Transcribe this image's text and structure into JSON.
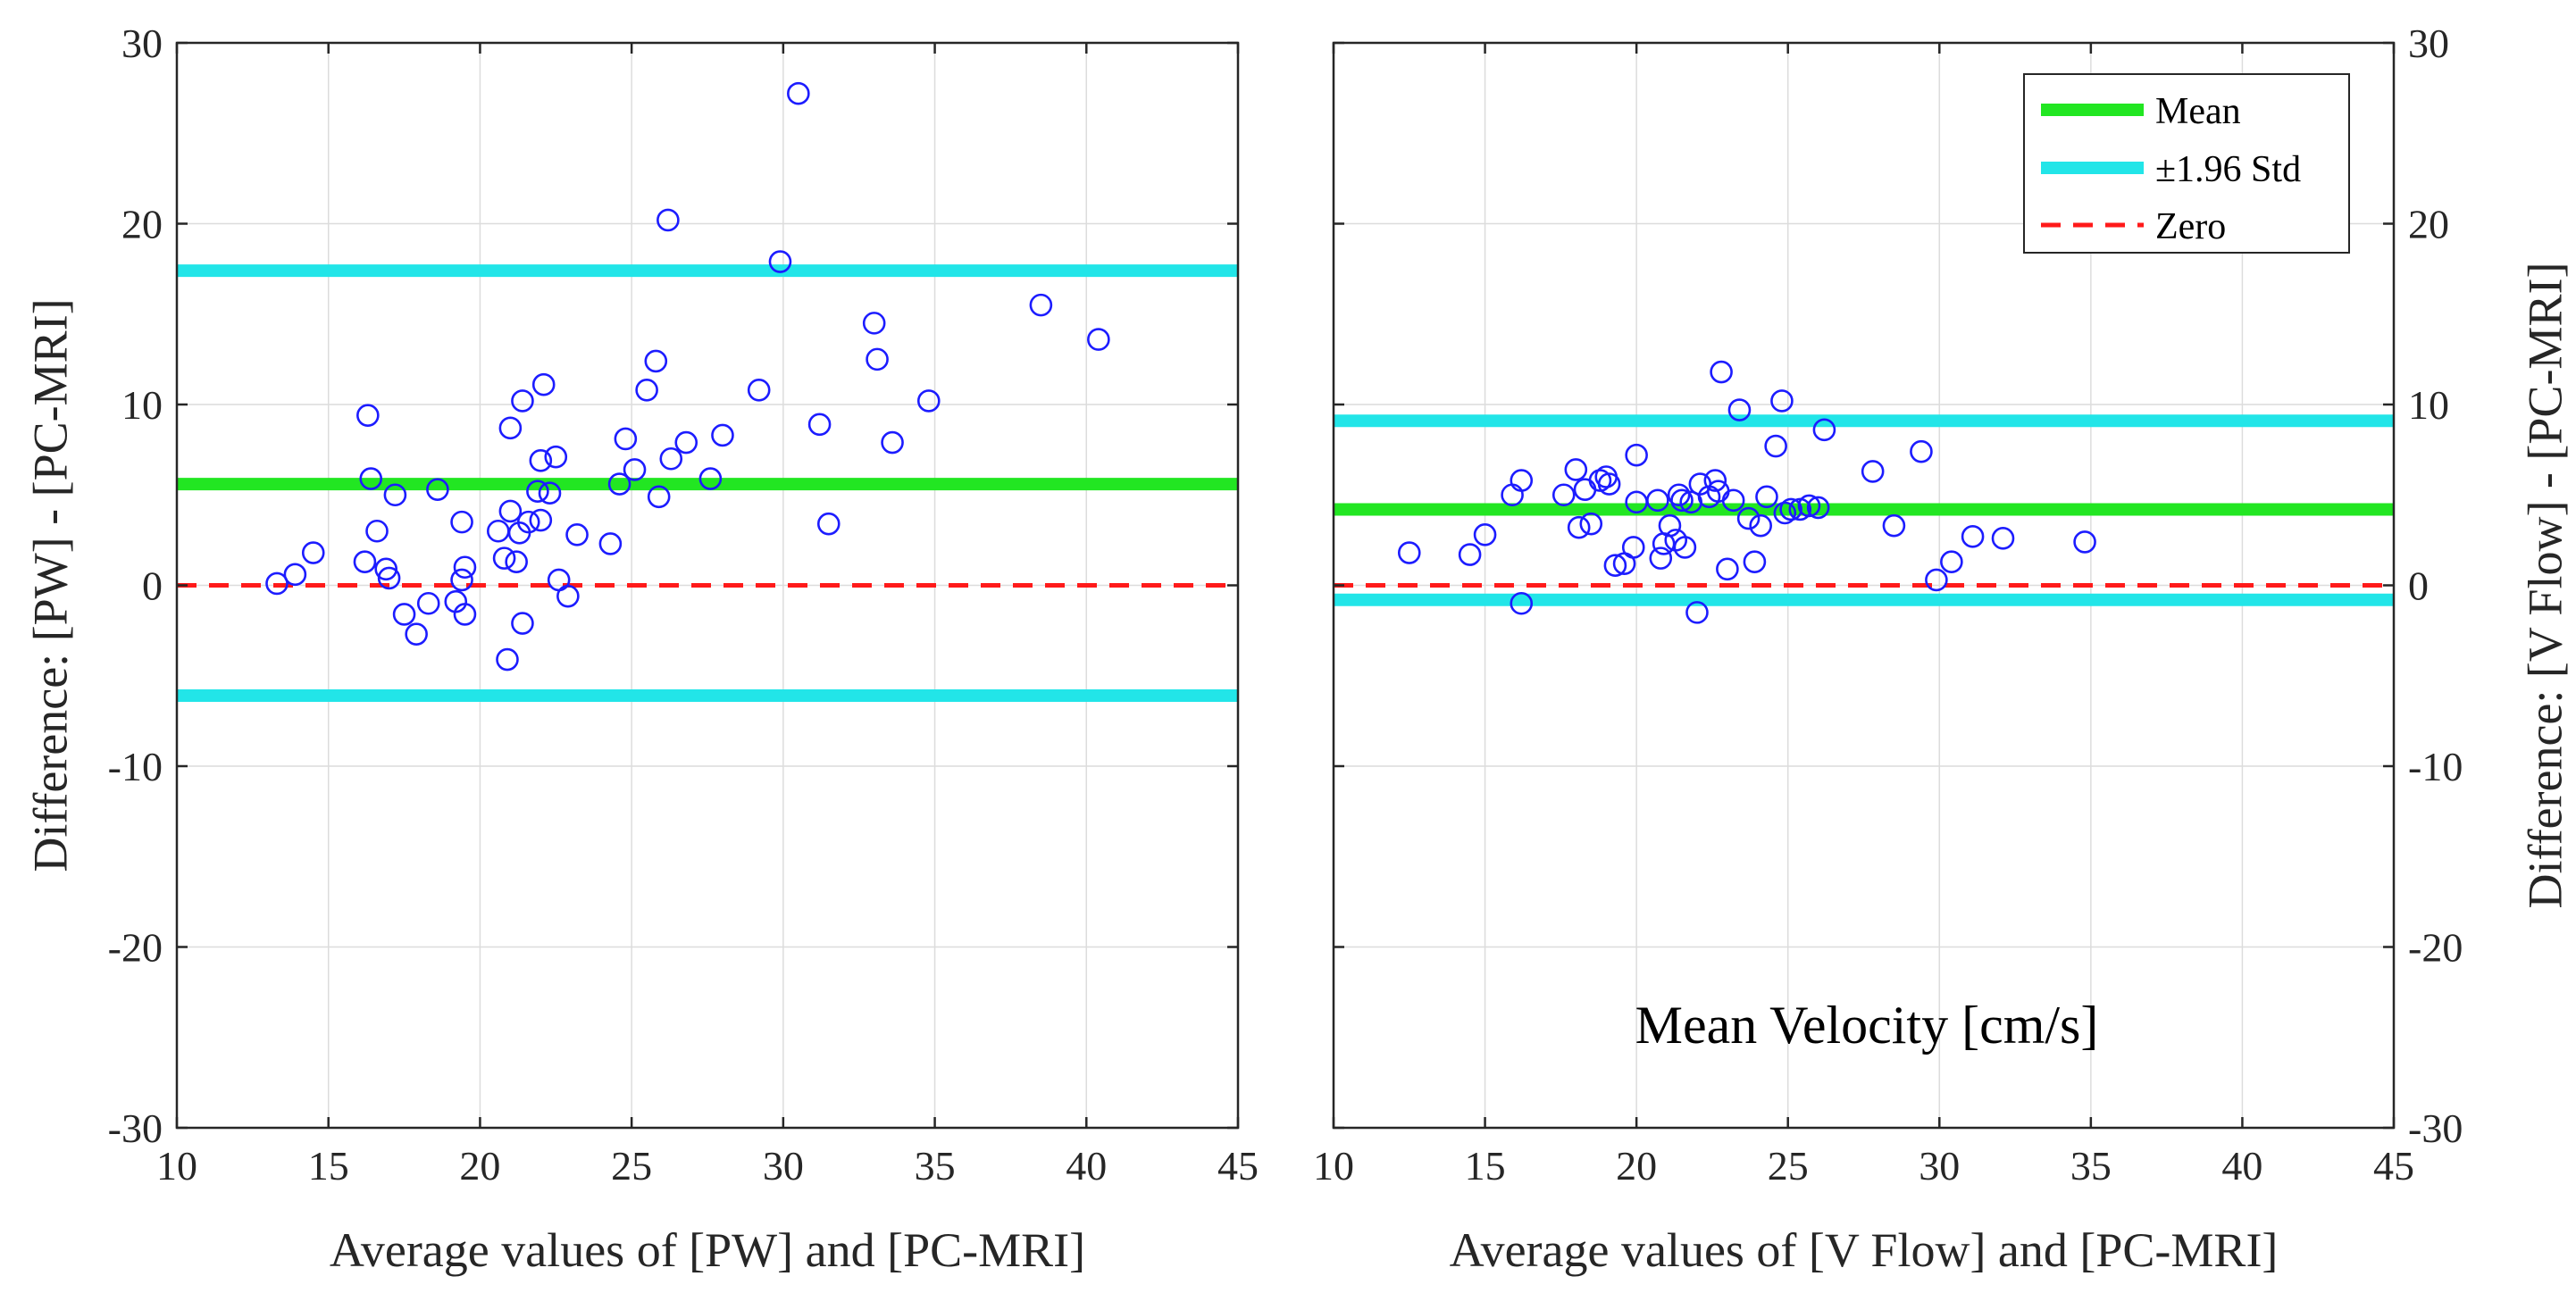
{
  "chart_data": [
    {
      "type": "scatter",
      "id": "left",
      "xlabel": "Average values of [PW] and [PC-MRI]",
      "ylabel": "Difference: [PW] - [PC-MRI]",
      "xlim": [
        10,
        45
      ],
      "ylim": [
        -30,
        30
      ],
      "xticks": [
        "10",
        "15",
        "20",
        "25",
        "30",
        "35",
        "40",
        "45"
      ],
      "yticks": [
        "-30",
        "-20",
        "-10",
        "0",
        "10",
        "20",
        "30"
      ],
      "grid": true,
      "ylabel_side": "left",
      "mean": 5.6,
      "upper": 17.4,
      "lower": -6.1,
      "zero": 0,
      "points": [
        [
          13.3,
          0.1
        ],
        [
          13.9,
          0.6
        ],
        [
          14.5,
          1.8
        ],
        [
          16.2,
          1.3
        ],
        [
          16.3,
          9.4
        ],
        [
          16.4,
          5.9
        ],
        [
          16.6,
          3.0
        ],
        [
          16.9,
          0.9
        ],
        [
          17.0,
          0.4
        ],
        [
          17.2,
          5.0
        ],
        [
          17.5,
          -1.6
        ],
        [
          17.9,
          -2.7
        ],
        [
          18.3,
          -1.0
        ],
        [
          18.6,
          5.3
        ],
        [
          19.2,
          -0.9
        ],
        [
          19.4,
          0.3
        ],
        [
          19.4,
          3.5
        ],
        [
          19.5,
          1.0
        ],
        [
          19.5,
          -1.6
        ],
        [
          20.6,
          3.0
        ],
        [
          20.8,
          1.5
        ],
        [
          20.9,
          -4.1
        ],
        [
          21.0,
          4.1
        ],
        [
          21.0,
          8.7
        ],
        [
          21.2,
          1.3
        ],
        [
          21.3,
          2.9
        ],
        [
          21.4,
          -2.1
        ],
        [
          21.4,
          10.2
        ],
        [
          21.6,
          3.5
        ],
        [
          21.9,
          5.2
        ],
        [
          22.0,
          3.6
        ],
        [
          22.0,
          6.9
        ],
        [
          22.1,
          11.1
        ],
        [
          22.3,
          5.1
        ],
        [
          22.5,
          7.1
        ],
        [
          22.6,
          0.3
        ],
        [
          22.9,
          -0.6
        ],
        [
          23.2,
          2.8
        ],
        [
          24.3,
          2.3
        ],
        [
          24.6,
          5.6
        ],
        [
          24.8,
          8.1
        ],
        [
          25.1,
          6.4
        ],
        [
          25.5,
          10.8
        ],
        [
          25.8,
          12.4
        ],
        [
          25.9,
          4.9
        ],
        [
          26.2,
          20.2
        ],
        [
          26.3,
          7.0
        ],
        [
          26.8,
          7.9
        ],
        [
          27.6,
          5.9
        ],
        [
          28.0,
          8.3
        ],
        [
          29.2,
          10.8
        ],
        [
          29.9,
          17.9
        ],
        [
          30.5,
          27.2
        ],
        [
          31.2,
          8.9
        ],
        [
          31.5,
          3.4
        ],
        [
          33.0,
          14.5
        ],
        [
          33.1,
          12.5
        ],
        [
          33.6,
          7.9
        ],
        [
          34.8,
          10.2
        ],
        [
          38.5,
          15.5
        ],
        [
          40.4,
          13.6
        ]
      ]
    },
    {
      "type": "scatter",
      "id": "right",
      "xlabel": "Average values of [V Flow] and [PC-MRI]",
      "ylabel": "Difference: [V Flow] - [PC-MRI]",
      "xlim": [
        10,
        45
      ],
      "ylim": [
        -30,
        30
      ],
      "xticks": [
        "10",
        "15",
        "20",
        "25",
        "30",
        "35",
        "40",
        "45"
      ],
      "yticks": [
        "-30",
        "-20",
        "-10",
        "0",
        "10",
        "20",
        "30"
      ],
      "grid": true,
      "ylabel_side": "right",
      "mean": 4.2,
      "upper": 9.1,
      "lower": -0.8,
      "zero": 0,
      "annotation": "Mean Velocity [cm/s]",
      "points": [
        [
          12.5,
          1.8
        ],
        [
          14.5,
          1.7
        ],
        [
          15.0,
          2.8
        ],
        [
          15.9,
          5.0
        ],
        [
          16.2,
          5.8
        ],
        [
          16.2,
          -1.0
        ],
        [
          17.6,
          5.0
        ],
        [
          18.0,
          6.4
        ],
        [
          18.1,
          3.2
        ],
        [
          18.3,
          5.3
        ],
        [
          18.5,
          3.4
        ],
        [
          18.8,
          5.8
        ],
        [
          19.0,
          6.0
        ],
        [
          19.1,
          5.6
        ],
        [
          19.3,
          1.1
        ],
        [
          19.6,
          1.2
        ],
        [
          19.9,
          2.1
        ],
        [
          20.0,
          4.6
        ],
        [
          20.0,
          7.2
        ],
        [
          20.7,
          4.7
        ],
        [
          20.8,
          1.5
        ],
        [
          20.9,
          2.3
        ],
        [
          21.1,
          3.3
        ],
        [
          21.3,
          2.5
        ],
        [
          21.4,
          5.0
        ],
        [
          21.5,
          4.7
        ],
        [
          21.6,
          2.1
        ],
        [
          21.8,
          4.6
        ],
        [
          22.0,
          -1.5
        ],
        [
          22.1,
          5.6
        ],
        [
          22.4,
          4.9
        ],
        [
          22.6,
          5.8
        ],
        [
          22.7,
          5.2
        ],
        [
          22.8,
          11.8
        ],
        [
          23.0,
          0.9
        ],
        [
          23.2,
          4.7
        ],
        [
          23.4,
          9.7
        ],
        [
          23.7,
          3.7
        ],
        [
          23.9,
          1.3
        ],
        [
          24.1,
          3.3
        ],
        [
          24.3,
          4.9
        ],
        [
          24.6,
          7.7
        ],
        [
          24.8,
          10.2
        ],
        [
          24.9,
          4.0
        ],
        [
          25.1,
          4.2
        ],
        [
          25.4,
          4.2
        ],
        [
          25.7,
          4.4
        ],
        [
          26.0,
          4.3
        ],
        [
          26.2,
          8.6
        ],
        [
          27.8,
          6.3
        ],
        [
          28.5,
          3.3
        ],
        [
          29.4,
          7.4
        ],
        [
          29.9,
          0.3
        ],
        [
          30.4,
          1.3
        ],
        [
          31.1,
          2.7
        ],
        [
          32.1,
          2.6
        ],
        [
          34.8,
          2.4
        ]
      ]
    }
  ],
  "legend": {
    "placement": "top-right",
    "items": [
      {
        "label": "Mean",
        "color": "#22e622",
        "style": "solid"
      },
      {
        "label": "±1.96 Std",
        "color": "#22e5e8",
        "style": "solid"
      },
      {
        "label": "Zero",
        "color": "#ff1a1a",
        "style": "dashed"
      }
    ]
  },
  "colors": {
    "points": "#1c1cff",
    "mean": "#22e622",
    "std": "#22e5e8",
    "zero": "#ff1a1a",
    "grid": "#dcdcdc",
    "axis": "#262626"
  }
}
